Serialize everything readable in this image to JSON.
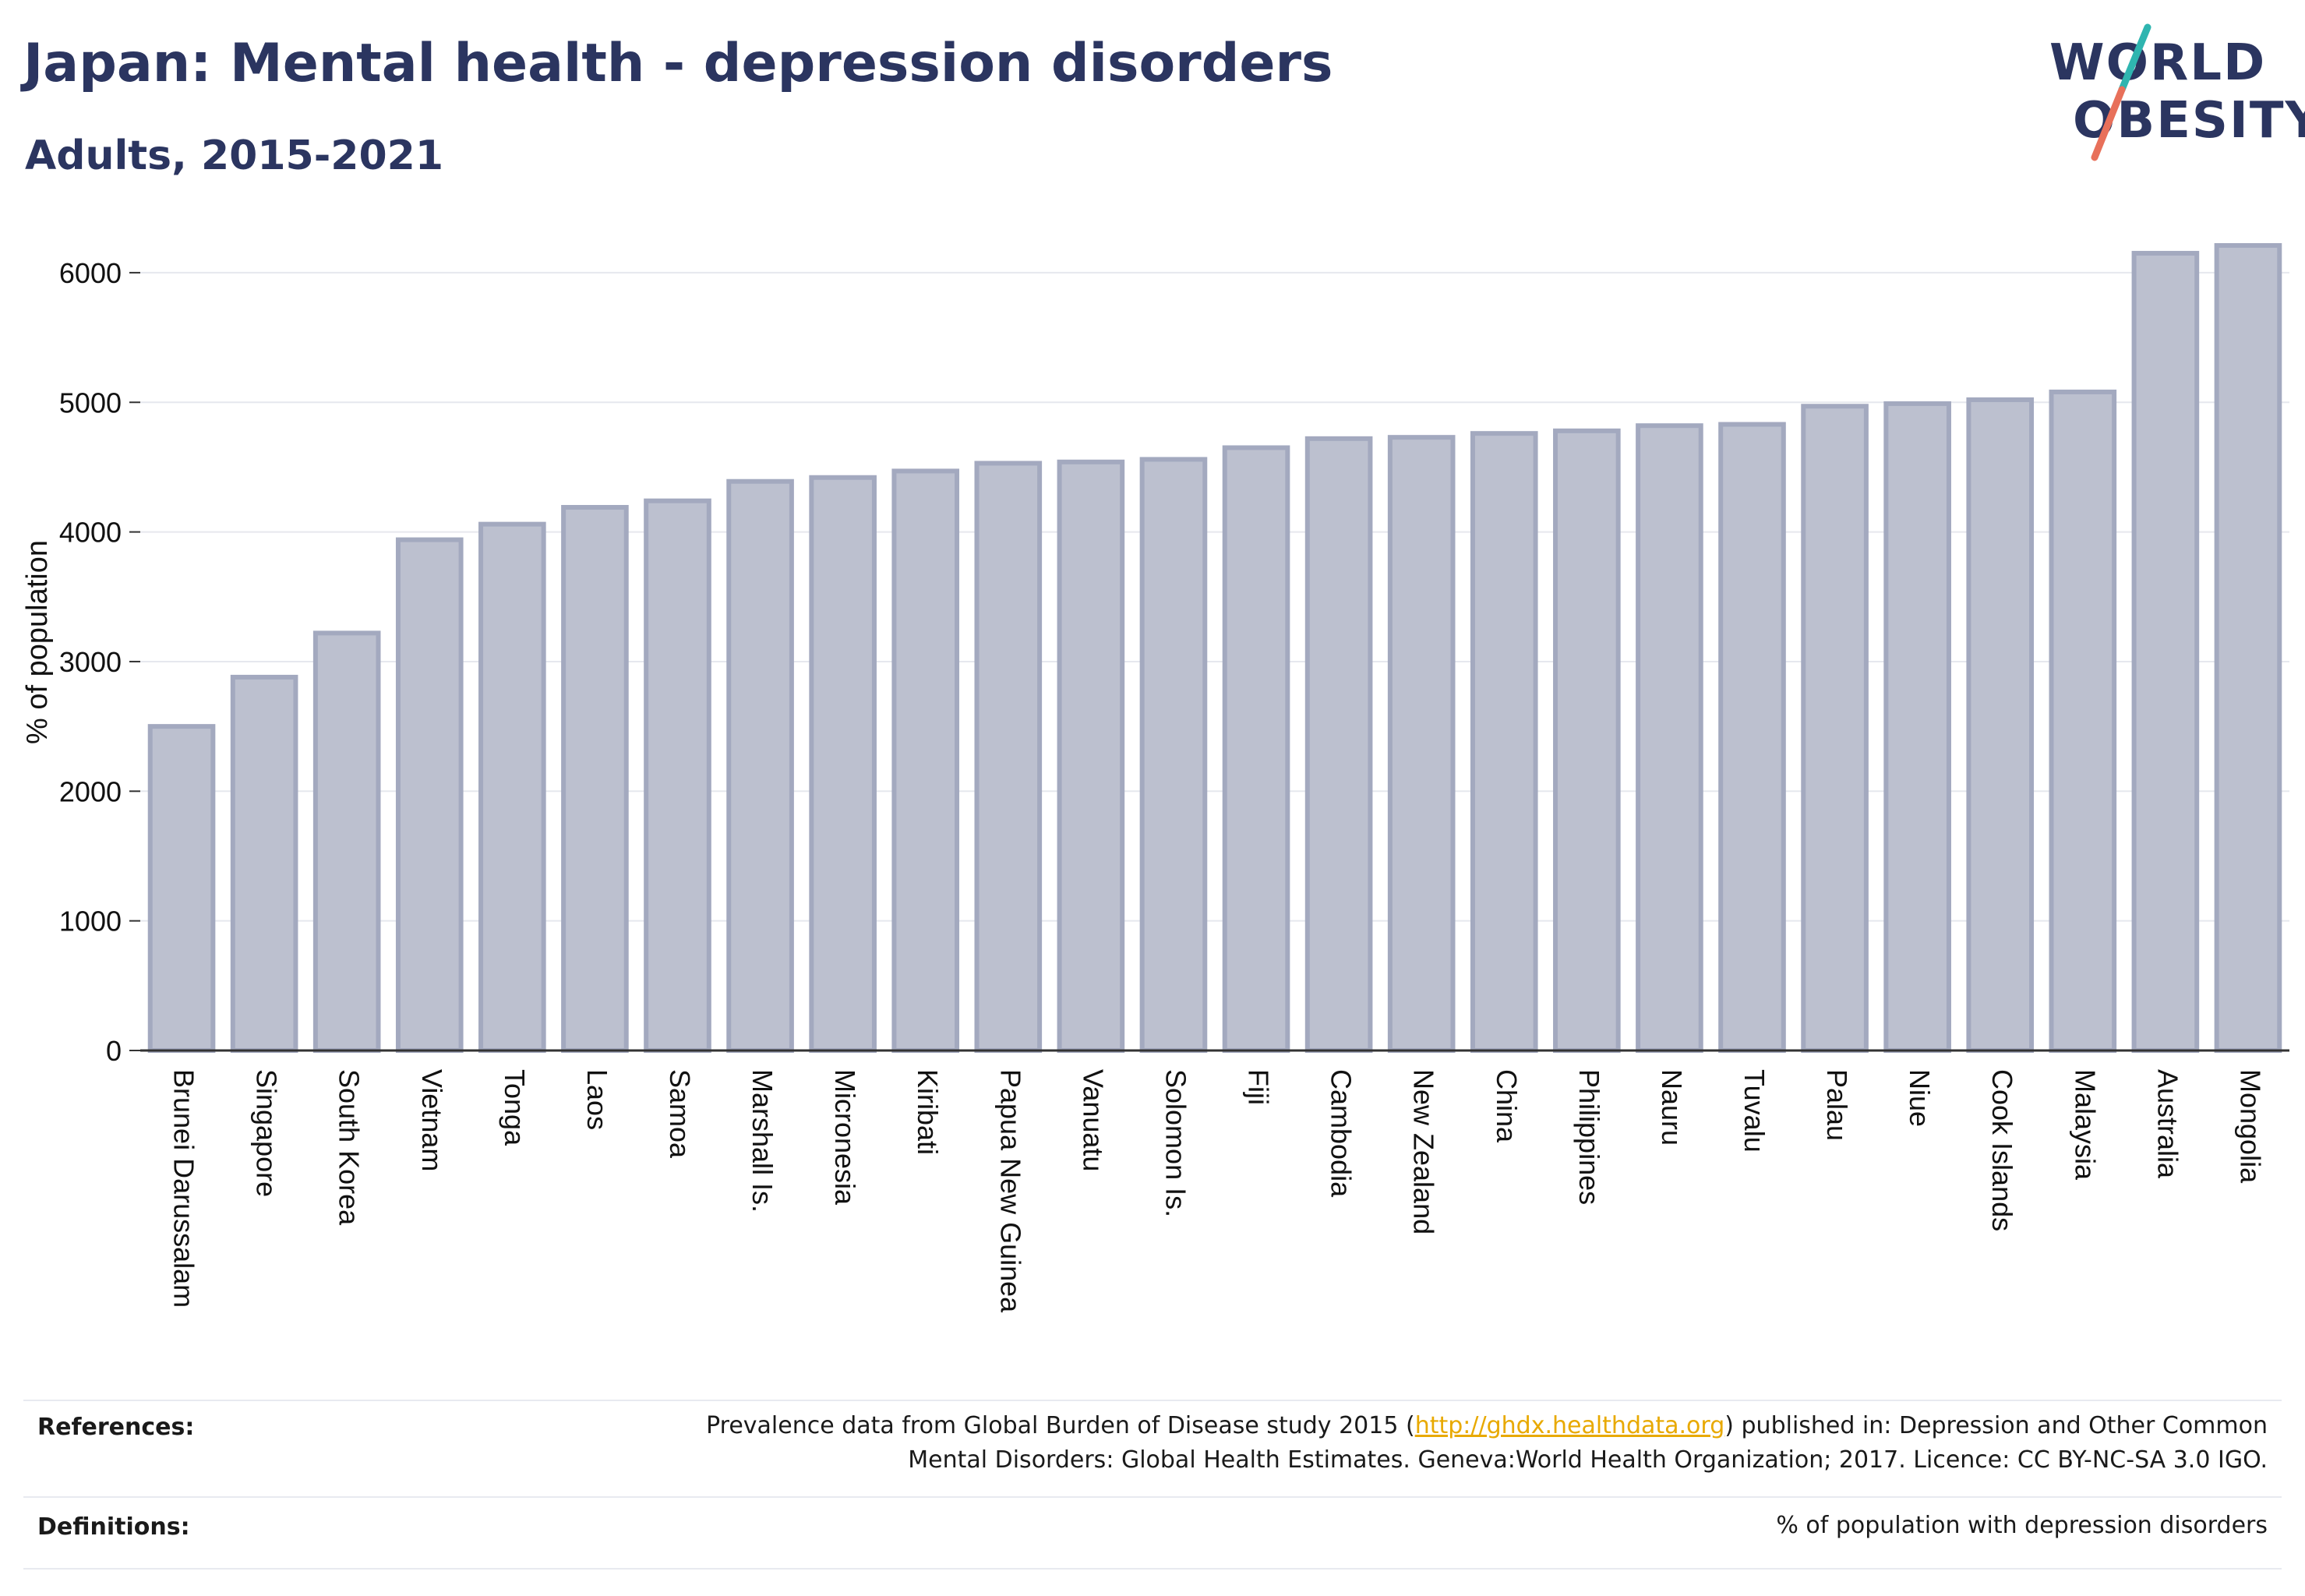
{
  "header": {
    "title": "Japan: Mental health - depression disorders",
    "subtitle": "Adults, 2015-2021"
  },
  "logo": {
    "line1": "WORLD",
    "line2": "OBESITY",
    "colors": {
      "text": "#2b3560",
      "slash_top": "#2fb5b0",
      "slash_bottom": "#e8705a"
    }
  },
  "chart_data": {
    "type": "bar",
    "title": "",
    "xlabel": "",
    "ylabel": "% of population",
    "ylim": [
      0,
      6300
    ],
    "yticks": [
      0,
      1000,
      2000,
      3000,
      4000,
      5000,
      6000
    ],
    "grid": true,
    "bar_color": "#bcc0cf",
    "bar_edge_color": "#a3a9bf",
    "categories": [
      "Brunei Darussalam",
      "Singapore",
      "South Korea",
      "Vietnam",
      "Tonga",
      "Laos",
      "Samoa",
      "Marshall Is.",
      "Micronesia",
      "Kiribati",
      "Papua New Guinea",
      "Vanuatu",
      "Solomon Is.",
      "Fiji",
      "Cambodia",
      "New Zealand",
      "China",
      "Philippines",
      "Nauru",
      "Tuvalu",
      "Palau",
      "Niue",
      "Cook Islands",
      "Malaysia",
      "Australia",
      "Mongolia"
    ],
    "values": [
      2500,
      2880,
      3220,
      3940,
      4060,
      4190,
      4240,
      4390,
      4420,
      4470,
      4530,
      4540,
      4560,
      4650,
      4720,
      4730,
      4760,
      4780,
      4820,
      4830,
      4970,
      4990,
      5020,
      5080,
      6150,
      6210
    ]
  },
  "footer": {
    "references_label": "References:",
    "references_line1_before": "Prevalence data from Global Burden of Disease study 2015 (",
    "references_link": "http://ghdx.healthdata.org",
    "references_line1_after": ") published in: Depression and Other Common",
    "references_line2": "Mental Disorders: Global Health Estimates. Geneva:World Health Organization; 2017. Licence: CC BY-NC-SA 3.0 IGO.",
    "definitions_label": "Definitions:",
    "definitions_text": "% of population with depression disorders"
  }
}
